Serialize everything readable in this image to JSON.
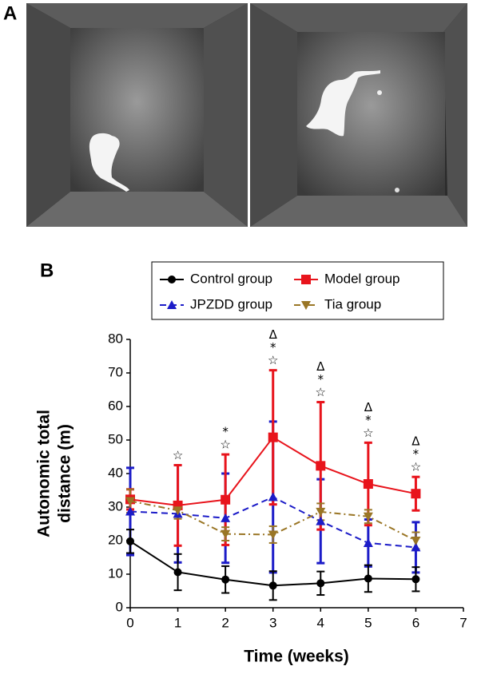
{
  "panels": {
    "a_label": "A",
    "b_label": "B"
  },
  "chart_data": {
    "type": "line",
    "x_label": "Time (weeks)",
    "y_label": [
      "Autonomic total",
      "distance (m)"
    ],
    "x": [
      0,
      1,
      2,
      3,
      4,
      5,
      6
    ],
    "xlim": [
      0,
      7
    ],
    "xticks": [
      0,
      1,
      2,
      3,
      4,
      5,
      6,
      7
    ],
    "ylim": [
      0,
      80
    ],
    "yticks": [
      0,
      10,
      20,
      30,
      40,
      50,
      60,
      70,
      80
    ],
    "series": [
      {
        "name": "Control group",
        "color": "#000000",
        "marker": "circle",
        "dash": "solid",
        "values": [
          19.8,
          10.6,
          8.4,
          6.6,
          7.3,
          8.7,
          8.5
        ],
        "errors": [
          3.5,
          5.4,
          4.0,
          4.3,
          3.5,
          4.0,
          3.6
        ]
      },
      {
        "name": "Model group",
        "color": "#e8141c",
        "marker": "square",
        "dash": "solid",
        "values": [
          32.3,
          30.5,
          32.2,
          50.8,
          42.3,
          36.9,
          34.0
        ],
        "errors": [
          3.0,
          12.0,
          13.5,
          20.0,
          19.0,
          12.3,
          5.0
        ]
      },
      {
        "name": "JPZDD group",
        "color": "#1c1cc8",
        "marker": "triangle",
        "dash": "dash",
        "values": [
          28.7,
          28.0,
          26.7,
          33.0,
          25.8,
          19.3,
          18.0
        ],
        "errors": [
          13.0,
          14.5,
          13.3,
          22.5,
          12.5,
          7.0,
          7.5
        ]
      },
      {
        "name": "Tia group",
        "color": "#9a7626",
        "marker": "triangle-down",
        "dash": "dashdot",
        "values": [
          31.8,
          29.0,
          22.0,
          21.8,
          28.6,
          27.2,
          20.0
        ],
        "errors": [
          3.5,
          2.5,
          2.0,
          2.5,
          2.5,
          2.0,
          2.5
        ]
      }
    ],
    "annotations": [
      {
        "x": 1,
        "text": [
          "☆"
        ]
      },
      {
        "x": 2,
        "text": [
          "*",
          "☆"
        ]
      },
      {
        "x": 3,
        "text": [
          "Δ",
          "*",
          "☆"
        ]
      },
      {
        "x": 4,
        "text": [
          "Δ",
          "*",
          "☆"
        ]
      },
      {
        "x": 5,
        "text": [
          "Δ",
          "*",
          "☆"
        ]
      },
      {
        "x": 6,
        "text": [
          "Δ",
          "*",
          "☆"
        ]
      }
    ]
  }
}
